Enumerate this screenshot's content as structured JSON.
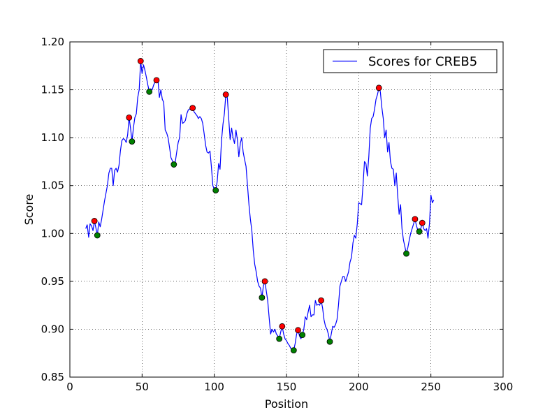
{
  "chart_data": {
    "type": "line",
    "title": "",
    "xlabel": "Position",
    "ylabel": "Score",
    "xlim": [
      0,
      300
    ],
    "ylim": [
      0.85,
      1.2
    ],
    "xticks": [
      "0",
      "50",
      "100",
      "150",
      "200",
      "250",
      "300"
    ],
    "yticks": [
      "0.85",
      "0.90",
      "0.95",
      "1.00",
      "1.05",
      "1.10",
      "1.15",
      "1.20"
    ],
    "grid": true,
    "legend_position": "top-right",
    "colors": {
      "line": "#0000ff",
      "maxima": "#ff0000",
      "minima": "#008000"
    },
    "series": [
      {
        "name": "Scores for CREB5",
        "points": [
          [
            11,
            1.005
          ],
          [
            12,
            1.009
          ],
          [
            13,
            0.996
          ],
          [
            14,
            1.01
          ],
          [
            15,
            1.008
          ],
          [
            16,
            1.003
          ],
          [
            17,
            1.013
          ],
          [
            18,
            1.006
          ],
          [
            19,
            0.998
          ],
          [
            20,
            1.012
          ],
          [
            21,
            1.007
          ],
          [
            22,
            1.015
          ],
          [
            24,
            1.034
          ],
          [
            26,
            1.05
          ],
          [
            27,
            1.063
          ],
          [
            28,
            1.068
          ],
          [
            29,
            1.068
          ],
          [
            30,
            1.05
          ],
          [
            31,
            1.066
          ],
          [
            32,
            1.068
          ],
          [
            33,
            1.064
          ],
          [
            34,
            1.071
          ],
          [
            35,
            1.086
          ],
          [
            36,
            1.097
          ],
          [
            37,
            1.099
          ],
          [
            38,
            1.098
          ],
          [
            39,
            1.095
          ],
          [
            40,
            1.103
          ],
          [
            41,
            1.121
          ],
          [
            42,
            1.11
          ],
          [
            43,
            1.096
          ],
          [
            44,
            1.11
          ],
          [
            45,
            1.121
          ],
          [
            46,
            1.125
          ],
          [
            47,
            1.142
          ],
          [
            48,
            1.15
          ],
          [
            49,
            1.18
          ],
          [
            50,
            1.167
          ],
          [
            51,
            1.176
          ],
          [
            52,
            1.17
          ],
          [
            53,
            1.163
          ],
          [
            54,
            1.155
          ],
          [
            55,
            1.148
          ],
          [
            56,
            1.151
          ],
          [
            57,
            1.15
          ],
          [
            58,
            1.155
          ],
          [
            59,
            1.158
          ],
          [
            60,
            1.16
          ],
          [
            61,
            1.16
          ],
          [
            62,
            1.142
          ],
          [
            63,
            1.15
          ],
          [
            64,
            1.14
          ],
          [
            65,
            1.137
          ],
          [
            66,
            1.108
          ],
          [
            67,
            1.105
          ],
          [
            68,
            1.1
          ],
          [
            69,
            1.09
          ],
          [
            70,
            1.079
          ],
          [
            71,
            1.076
          ],
          [
            72,
            1.072
          ],
          [
            73,
            1.075
          ],
          [
            74,
            1.085
          ],
          [
            75,
            1.095
          ],
          [
            76,
            1.1
          ],
          [
            77,
            1.124
          ],
          [
            78,
            1.115
          ],
          [
            79,
            1.116
          ],
          [
            80,
            1.118
          ],
          [
            81,
            1.125
          ],
          [
            82,
            1.129
          ],
          [
            83,
            1.13
          ],
          [
            84,
            1.13
          ],
          [
            85,
            1.131
          ],
          [
            86,
            1.127
          ],
          [
            87,
            1.125
          ],
          [
            88,
            1.123
          ],
          [
            89,
            1.12
          ],
          [
            90,
            1.122
          ],
          [
            91,
            1.12
          ],
          [
            92,
            1.115
          ],
          [
            93,
            1.104
          ],
          [
            94,
            1.092
          ],
          [
            95,
            1.085
          ],
          [
            96,
            1.084
          ],
          [
            97,
            1.086
          ],
          [
            98,
            1.07
          ],
          [
            99,
            1.05
          ],
          [
            100,
            1.046
          ],
          [
            101,
            1.045
          ],
          [
            102,
            1.054
          ],
          [
            103,
            1.073
          ],
          [
            104,
            1.067
          ],
          [
            105,
            1.097
          ],
          [
            106,
            1.114
          ],
          [
            107,
            1.125
          ],
          [
            108,
            1.145
          ],
          [
            109,
            1.142
          ],
          [
            110,
            1.12
          ],
          [
            111,
            1.098
          ],
          [
            112,
            1.11
          ],
          [
            113,
            1.1
          ],
          [
            114,
            1.094
          ],
          [
            115,
            1.108
          ],
          [
            116,
            1.098
          ],
          [
            117,
            1.08
          ],
          [
            118,
            1.094
          ],
          [
            119,
            1.1
          ],
          [
            120,
            1.085
          ],
          [
            121,
            1.077
          ],
          [
            122,
            1.07
          ],
          [
            123,
            1.05
          ],
          [
            124,
            1.03
          ],
          [
            125,
            1.015
          ],
          [
            126,
            1.003
          ],
          [
            127,
            0.982
          ],
          [
            128,
            0.968
          ],
          [
            129,
            0.96
          ],
          [
            130,
            0.95
          ],
          [
            131,
            0.945
          ],
          [
            132,
            0.943
          ],
          [
            133,
            0.933
          ],
          [
            134,
            0.945
          ],
          [
            135,
            0.95
          ],
          [
            136,
            0.94
          ],
          [
            137,
            0.93
          ],
          [
            138,
            0.912
          ],
          [
            139,
            0.895
          ],
          [
            140,
            0.9
          ],
          [
            141,
            0.897
          ],
          [
            142,
            0.9
          ],
          [
            143,
            0.895
          ],
          [
            144,
            0.893
          ],
          [
            145,
            0.89
          ],
          [
            146,
            0.897
          ],
          [
            147,
            0.903
          ],
          [
            148,
            0.895
          ],
          [
            149,
            0.89
          ],
          [
            150,
            0.888
          ],
          [
            151,
            0.885
          ],
          [
            152,
            0.883
          ],
          [
            153,
            0.88
          ],
          [
            154,
            0.878
          ],
          [
            155,
            0.878
          ],
          [
            156,
            0.885
          ],
          [
            157,
            0.895
          ],
          [
            158,
            0.899
          ],
          [
            159,
            0.893
          ],
          [
            160,
            0.89
          ],
          [
            161,
            0.894
          ],
          [
            162,
            0.9
          ],
          [
            163,
            0.913
          ],
          [
            164,
            0.91
          ],
          [
            165,
            0.918
          ],
          [
            166,
            0.925
          ],
          [
            167,
            0.913
          ],
          [
            168,
            0.915
          ],
          [
            169,
            0.915
          ],
          [
            170,
            0.93
          ],
          [
            171,
            0.925
          ],
          [
            172,
            0.926
          ],
          [
            173,
            0.925
          ],
          [
            174,
            0.93
          ],
          [
            175,
            0.922
          ],
          [
            176,
            0.91
          ],
          [
            177,
            0.903
          ],
          [
            178,
            0.9
          ],
          [
            179,
            0.895
          ],
          [
            180,
            0.887
          ],
          [
            181,
            0.895
          ],
          [
            182,
            0.903
          ],
          [
            183,
            0.902
          ],
          [
            184,
            0.905
          ],
          [
            185,
            0.91
          ],
          [
            186,
            0.925
          ],
          [
            187,
            0.945
          ],
          [
            188,
            0.95
          ],
          [
            189,
            0.955
          ],
          [
            190,
            0.955
          ],
          [
            191,
            0.95
          ],
          [
            192,
            0.955
          ],
          [
            193,
            0.96
          ],
          [
            194,
            0.97
          ],
          [
            195,
            0.975
          ],
          [
            196,
            0.99
          ],
          [
            197,
            0.998
          ],
          [
            198,
            0.995
          ],
          [
            199,
            1.01
          ],
          [
            200,
            1.032
          ],
          [
            201,
            1.031
          ],
          [
            202,
            1.03
          ],
          [
            203,
            1.05
          ],
          [
            204,
            1.075
          ],
          [
            205,
            1.073
          ],
          [
            206,
            1.06
          ],
          [
            207,
            1.08
          ],
          [
            208,
            1.11
          ],
          [
            209,
            1.12
          ],
          [
            210,
            1.122
          ],
          [
            211,
            1.13
          ],
          [
            212,
            1.14
          ],
          [
            213,
            1.145
          ],
          [
            214,
            1.152
          ],
          [
            215,
            1.148
          ],
          [
            216,
            1.132
          ],
          [
            217,
            1.12
          ],
          [
            218,
            1.1
          ],
          [
            219,
            1.108
          ],
          [
            220,
            1.085
          ],
          [
            221,
            1.095
          ],
          [
            222,
            1.075
          ],
          [
            223,
            1.068
          ],
          [
            224,
            1.067
          ],
          [
            225,
            1.05
          ],
          [
            226,
            1.063
          ],
          [
            227,
            1.04
          ],
          [
            228,
            1.02
          ],
          [
            229,
            1.03
          ],
          [
            230,
            1.005
          ],
          [
            231,
            0.993
          ],
          [
            232,
            0.986
          ],
          [
            233,
            0.979
          ],
          [
            234,
            0.985
          ],
          [
            235,
            0.993
          ],
          [
            236,
            1.0
          ],
          [
            237,
            1.005
          ],
          [
            238,
            1.01
          ],
          [
            239,
            1.015
          ],
          [
            240,
            1.008
          ],
          [
            241,
            1.003
          ],
          [
            242,
            1.002
          ],
          [
            243,
            1.005
          ],
          [
            244,
            1.011
          ],
          [
            245,
            1.005
          ],
          [
            246,
            1.003
          ],
          [
            247,
            1.005
          ],
          [
            248,
            0.995
          ],
          [
            249,
            1.01
          ],
          [
            250,
            1.04
          ],
          [
            251,
            1.032
          ],
          [
            252,
            1.035
          ]
        ]
      }
    ],
    "maxima": [
      [
        17,
        1.013
      ],
      [
        41,
        1.121
      ],
      [
        49,
        1.18
      ],
      [
        60,
        1.16
      ],
      [
        85,
        1.131
      ],
      [
        108,
        1.145
      ],
      [
        135,
        0.95
      ],
      [
        147,
        0.903
      ],
      [
        158,
        0.899
      ],
      [
        174,
        0.93
      ],
      [
        214,
        1.152
      ],
      [
        239,
        1.015
      ],
      [
        244,
        1.011
      ]
    ],
    "minima": [
      [
        19,
        0.998
      ],
      [
        43,
        1.096
      ],
      [
        55,
        1.148
      ],
      [
        72,
        1.072
      ],
      [
        101,
        1.045
      ],
      [
        133,
        0.933
      ],
      [
        145,
        0.89
      ],
      [
        155,
        0.878
      ],
      [
        161,
        0.894
      ],
      [
        180,
        0.887
      ],
      [
        233,
        0.979
      ],
      [
        242,
        1.002
      ]
    ]
  }
}
